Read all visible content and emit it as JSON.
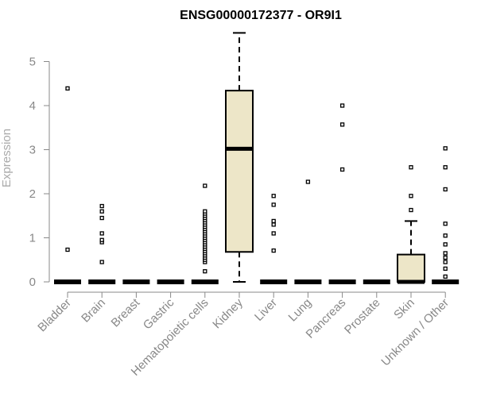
{
  "colors": {
    "box_fill": "#ede6c8",
    "stroke": "#000000",
    "axis": "#888888",
    "ylabel": "#aaaaaa",
    "title": "#000000"
  },
  "chart_data": {
    "type": "boxplot",
    "title": "ENSG00000172377 - OR9I1",
    "xlabel": "",
    "ylabel": "Expression",
    "ylim": [
      0,
      5.8
    ],
    "yticks": [
      0,
      1,
      2,
      3,
      4,
      5
    ],
    "grid": false,
    "legend": "none",
    "categories": [
      "Bladder",
      "Brain",
      "Breast",
      "Gastric",
      "Hematopoietic cells",
      "Kidney",
      "Liver",
      "Lung",
      "Pancreas",
      "Prostate",
      "Skin",
      "Unknown / Other"
    ],
    "boxes": [
      {
        "category": "Bladder",
        "q1": 0,
        "median": 0,
        "q3": 0,
        "whisker_low": 0,
        "whisker_high": 0,
        "outliers": [
          0.73,
          4.39
        ]
      },
      {
        "category": "Brain",
        "q1": 0,
        "median": 0,
        "q3": 0,
        "whisker_low": 0,
        "whisker_high": 0,
        "outliers": [
          0.45,
          0.9,
          0.95,
          1.1,
          1.45,
          1.6,
          1.72
        ]
      },
      {
        "category": "Breast",
        "q1": 0,
        "median": 0,
        "q3": 0,
        "whisker_low": 0,
        "whisker_high": 0,
        "outliers": []
      },
      {
        "category": "Gastric",
        "q1": 0,
        "median": 0,
        "q3": 0,
        "whisker_low": 0,
        "whisker_high": 0,
        "outliers": []
      },
      {
        "category": "Hematopoietic cells",
        "q1": 0,
        "median": 0,
        "q3": 0,
        "whisker_low": 0,
        "whisker_high": 0,
        "outliers": [
          0.24,
          0.45,
          0.5,
          0.55,
          0.6,
          0.65,
          0.7,
          0.75,
          0.8,
          0.85,
          0.9,
          0.95,
          1.0,
          1.05,
          1.1,
          1.15,
          1.2,
          1.25,
          1.3,
          1.35,
          1.4,
          1.45,
          1.5,
          1.55,
          1.6,
          2.18
        ]
      },
      {
        "category": "Kidney",
        "q1": 0.68,
        "median": 3.02,
        "q3": 4.34,
        "whisker_low": 0,
        "whisker_high": 5.65,
        "outliers": []
      },
      {
        "category": "Liver",
        "q1": 0,
        "median": 0,
        "q3": 0,
        "whisker_low": 0,
        "whisker_high": 0,
        "outliers": [
          0.71,
          1.1,
          1.3,
          1.38,
          1.75,
          1.95
        ]
      },
      {
        "category": "Lung",
        "q1": 0,
        "median": 0,
        "q3": 0,
        "whisker_low": 0,
        "whisker_high": 0,
        "outliers": [
          2.27
        ]
      },
      {
        "category": "Pancreas",
        "q1": 0,
        "median": 0,
        "q3": 0,
        "whisker_low": 0,
        "whisker_high": 0,
        "outliers": [
          2.55,
          3.57,
          4.0
        ]
      },
      {
        "category": "Prostate",
        "q1": 0,
        "median": 0,
        "q3": 0,
        "whisker_low": 0,
        "whisker_high": 0,
        "outliers": []
      },
      {
        "category": "Skin",
        "q1": 0,
        "median": 0,
        "q3": 0.62,
        "whisker_low": 0,
        "whisker_high": 1.38,
        "outliers": [
          1.63,
          1.95,
          2.6
        ]
      },
      {
        "category": "Unknown / Other",
        "q1": 0,
        "median": 0,
        "q3": 0,
        "whisker_low": 0,
        "whisker_high": 0,
        "outliers": [
          0.12,
          0.3,
          0.45,
          0.55,
          0.65,
          0.85,
          1.05,
          1.32,
          2.1,
          2.6,
          3.03
        ]
      }
    ]
  }
}
